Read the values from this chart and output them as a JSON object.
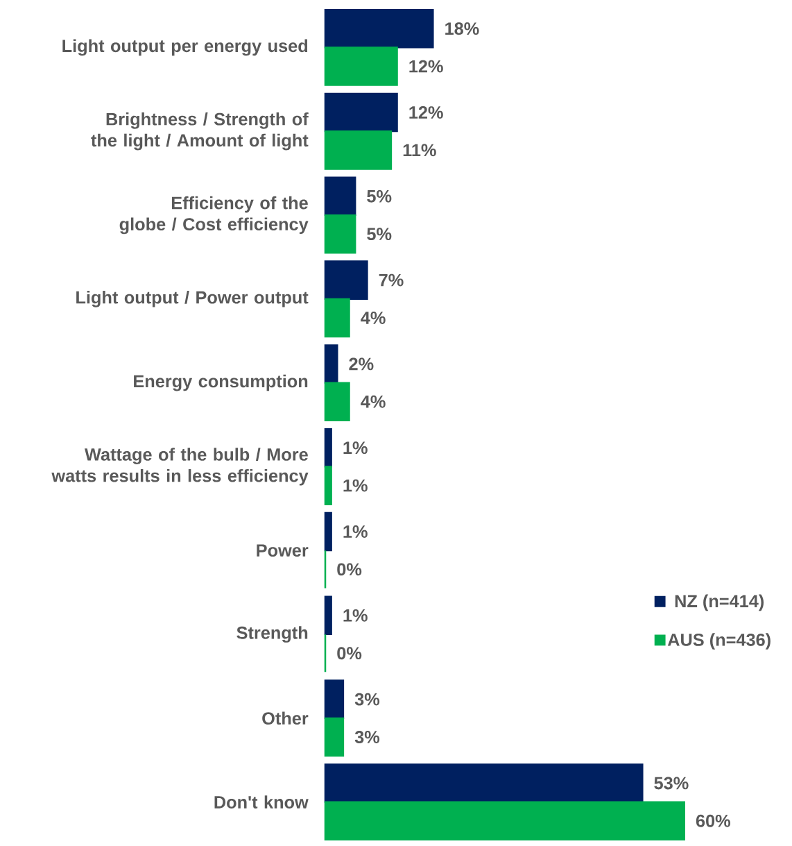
{
  "chart_data": {
    "type": "bar",
    "orientation": "horizontal",
    "categories": [
      "Light output per energy used",
      "Brightness / Strength of the light / Amount of light",
      "Efficiency of the globe / Cost efficiency",
      "Light output / Power output",
      "Energy consumption",
      "Wattage of the bulb / More watts results in less efficiency",
      "Power",
      "Strength",
      "Other",
      "Don't know"
    ],
    "series": [
      {
        "name": "NZ (n=414)",
        "color": "#002060",
        "values": [
          18,
          12,
          5,
          7,
          2,
          1,
          1,
          1,
          3,
          53
        ],
        "value_labels": [
          "18%",
          "12%",
          "5%",
          "7%",
          "2%",
          "1%",
          "1%",
          "1%",
          "3%",
          "53%"
        ]
      },
      {
        "name": "AUS (n=436)",
        "color": "#00b050",
        "values": [
          12,
          11,
          5,
          4,
          4,
          1,
          0,
          0,
          3,
          60
        ],
        "value_labels": [
          "12%",
          "11%",
          "5%",
          "4%",
          "4%",
          "1%",
          "0%",
          "0%",
          "3%",
          "60%"
        ]
      }
    ],
    "legend": "right"
  }
}
